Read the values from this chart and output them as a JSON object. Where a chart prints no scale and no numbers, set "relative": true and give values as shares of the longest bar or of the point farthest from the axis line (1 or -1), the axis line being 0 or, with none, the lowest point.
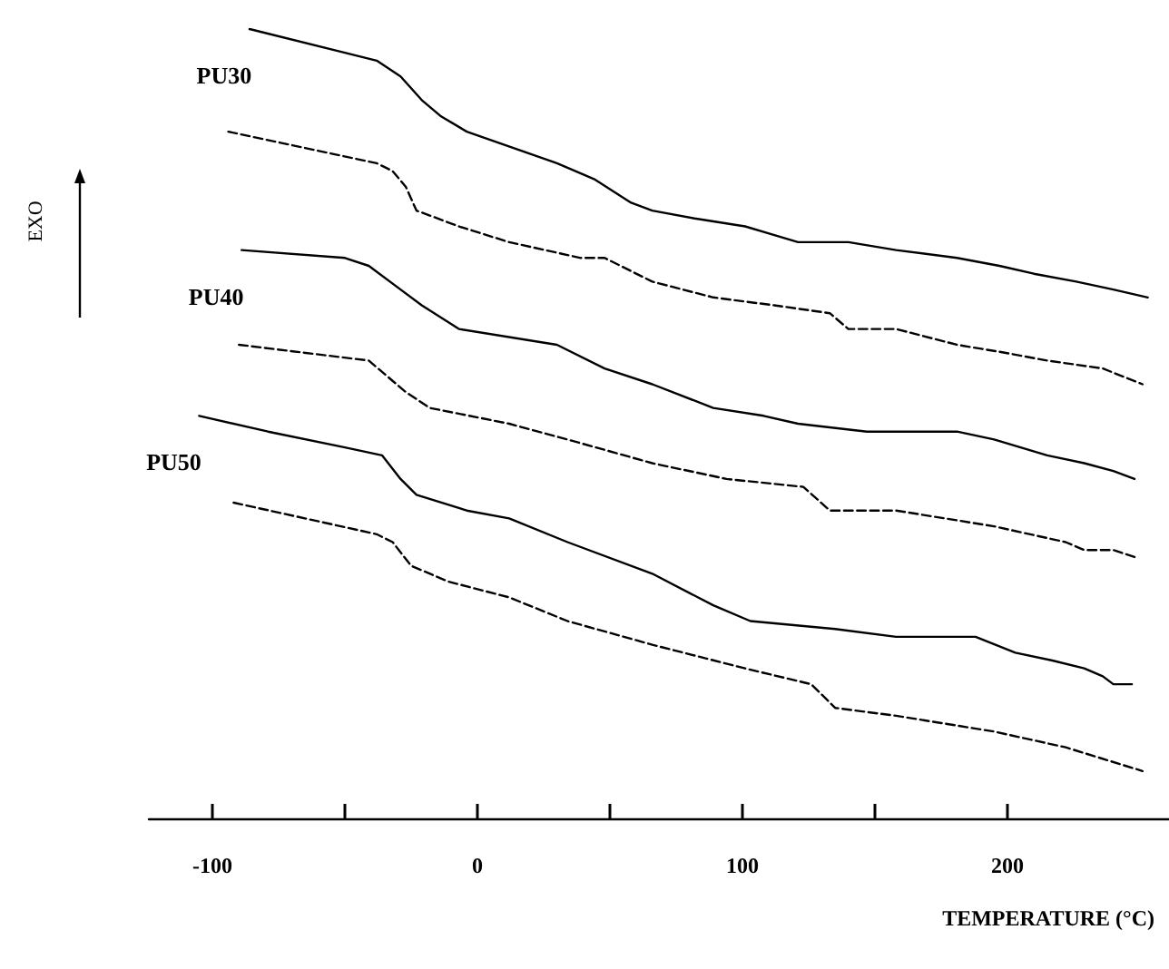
{
  "chart_data": {
    "type": "line",
    "relative": true,
    "xlabel": "TEMPERATURE (°C)",
    "annotations": [
      "EXO"
    ],
    "xlim": [
      -124,
      261
    ],
    "xticks": [
      -100,
      {
        "value": -50,
        "label": null
      },
      0,
      {
        "value": 50,
        "label": null
      },
      100,
      {
        "value": 150,
        "label": null
      },
      200
    ],
    "grid": false,
    "legend": false,
    "marker": "none",
    "series": [
      {
        "name": "PU30",
        "color": "#000000",
        "line_style": "solid",
        "x": [
          -86,
          -50,
          -38,
          -29,
          -21,
          -14,
          -4,
          30,
          44,
          58,
          66,
          82,
          101,
          121,
          140,
          158,
          181,
          197,
          210,
          226,
          240,
          253
        ],
        "values": [
          1.0,
          0.97,
          0.96,
          0.94,
          0.91,
          0.89,
          0.87,
          0.83,
          0.81,
          0.78,
          0.77,
          0.76,
          0.75,
          0.73,
          0.73,
          0.72,
          0.71,
          0.7,
          0.69,
          0.68,
          0.67,
          0.66
        ]
      },
      {
        "color": "#000000",
        "line_style": "dashed",
        "x": [
          -94,
          -38,
          -32,
          -27,
          -23,
          -7,
          12,
          39,
          48,
          66,
          89,
          112,
          133,
          140,
          158,
          181,
          199,
          215,
          236,
          251
        ],
        "values": [
          0.87,
          0.83,
          0.82,
          0.8,
          0.77,
          0.75,
          0.73,
          0.71,
          0.71,
          0.68,
          0.66,
          0.65,
          0.64,
          0.62,
          0.62,
          0.6,
          0.59,
          0.58,
          0.57,
          0.55
        ]
      },
      {
        "name": "PU40",
        "color": "#000000",
        "line_style": "solid",
        "x": [
          -89,
          -50,
          -41,
          -29,
          -21,
          -7,
          30,
          48,
          66,
          89,
          108,
          121,
          147,
          181,
          195,
          215,
          229,
          240,
          248
        ],
        "values": [
          0.72,
          0.71,
          0.7,
          0.67,
          0.65,
          0.62,
          0.6,
          0.57,
          0.55,
          0.52,
          0.51,
          0.5,
          0.49,
          0.49,
          0.48,
          0.46,
          0.45,
          0.44,
          0.43
        ]
      },
      {
        "color": "#000000",
        "line_style": "dashed",
        "x": [
          -90,
          -41,
          -34,
          -27,
          -18,
          12,
          34,
          66,
          94,
          123,
          133,
          158,
          195,
          222,
          229,
          233,
          240,
          249
        ],
        "values": [
          0.6,
          0.58,
          0.56,
          0.54,
          0.52,
          0.5,
          0.48,
          0.45,
          0.43,
          0.42,
          0.39,
          0.39,
          0.37,
          0.35,
          0.34,
          0.34,
          0.34,
          0.33
        ]
      },
      {
        "name": "PU50",
        "color": "#000000",
        "line_style": "solid",
        "x": [
          -105,
          -79,
          -50,
          -36,
          -29,
          -23,
          -4,
          12,
          34,
          66,
          89,
          103,
          135,
          158,
          188,
          203,
          217,
          229,
          236,
          240,
          247
        ],
        "values": [
          0.51,
          0.49,
          0.47,
          0.46,
          0.43,
          0.41,
          0.39,
          0.38,
          0.35,
          0.31,
          0.27,
          0.25,
          0.24,
          0.23,
          0.23,
          0.21,
          0.2,
          0.19,
          0.18,
          0.17,
          0.17
        ]
      },
      {
        "color": "#000000",
        "line_style": "dashed",
        "x": [
          -92,
          -38,
          -32,
          -25,
          -11,
          12,
          34,
          66,
          101,
          126,
          135,
          158,
          195,
          222,
          251
        ],
        "values": [
          0.4,
          0.36,
          0.35,
          0.32,
          0.3,
          0.28,
          0.25,
          0.22,
          0.19,
          0.17,
          0.14,
          0.13,
          0.11,
          0.09,
          0.06
        ]
      }
    ]
  }
}
